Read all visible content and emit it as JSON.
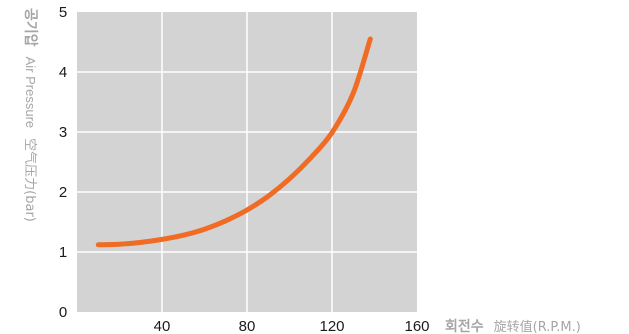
{
  "chart_data": {
    "type": "line",
    "xlim": [
      0,
      160
    ],
    "ylim": [
      0,
      5
    ],
    "x_ticks": [
      40,
      80,
      120,
      160
    ],
    "y_ticks": [
      0,
      1,
      2,
      3,
      4,
      5
    ],
    "grid": true,
    "colors": {
      "plot_bg": "#d3d3d3",
      "grid": "#ffffff",
      "line": "#f06b24",
      "axis_label": "#a6a6a6"
    },
    "xlabel": {
      "bold": "회전수",
      "regular": "旋转值(R.P.M.)"
    },
    "ylabel": {
      "bold": "공기압",
      "regular": "Air Pressure",
      "cjk": "空气压力(bar)"
    },
    "series": [
      {
        "x": [
          10,
          20,
          30,
          40,
          50,
          60,
          70,
          80,
          90,
          100,
          110,
          120,
          130,
          138
        ],
        "y": [
          1.12,
          1.13,
          1.16,
          1.21,
          1.28,
          1.38,
          1.52,
          1.7,
          1.93,
          2.22,
          2.57,
          2.99,
          3.65,
          4.55
        ]
      }
    ]
  }
}
